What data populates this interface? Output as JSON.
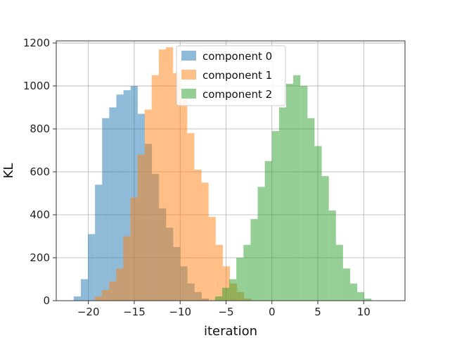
{
  "chart_data": {
    "type": "histogram",
    "xlabel": "iteration",
    "ylabel": "KL",
    "xlim": [
      -23.5,
      14.5
    ],
    "ylim": [
      0,
      1210
    ],
    "grid": true,
    "legend_position": "top-center",
    "x_ticks": [
      -20,
      -15,
      -10,
      -5,
      0,
      5,
      10
    ],
    "x_tick_labels": [
      "−20",
      "−15",
      "−10",
      "−5",
      "0",
      "5",
      "10"
    ],
    "y_ticks": [
      0,
      200,
      400,
      600,
      800,
      1000,
      1200
    ],
    "y_tick_labels": [
      "0",
      "200",
      "400",
      "600",
      "800",
      "1000",
      "1200"
    ],
    "series": [
      {
        "name": "component 0",
        "color": "#1f77b4",
        "alpha": 0.5,
        "bin_start": -21.6,
        "bin_width": 0.775,
        "values": [
          20,
          100,
          310,
          540,
          850,
          900,
          960,
          980,
          1000,
          870,
          730,
          590,
          430,
          340,
          250,
          160,
          80,
          40,
          10
        ]
      },
      {
        "name": "component 1",
        "color": "#ff7f0e",
        "alpha": 0.5,
        "bin_start": -19.3,
        "bin_width": 0.775,
        "values": [
          20,
          50,
          90,
          150,
          300,
          480,
          680,
          890,
          1050,
          1170,
          1180,
          1060,
          940,
          780,
          610,
          550,
          390,
          260,
          160,
          80,
          40,
          10
        ]
      },
      {
        "name": "component 2",
        "color": "#2ca02c",
        "alpha": 0.5,
        "bin_start": -6.2,
        "bin_width": 0.775,
        "values": [
          20,
          60,
          100,
          200,
          260,
          380,
          530,
          650,
          790,
          900,
          1010,
          1050,
          1000,
          850,
          720,
          580,
          420,
          260,
          150,
          80,
          40,
          10
        ]
      }
    ]
  }
}
